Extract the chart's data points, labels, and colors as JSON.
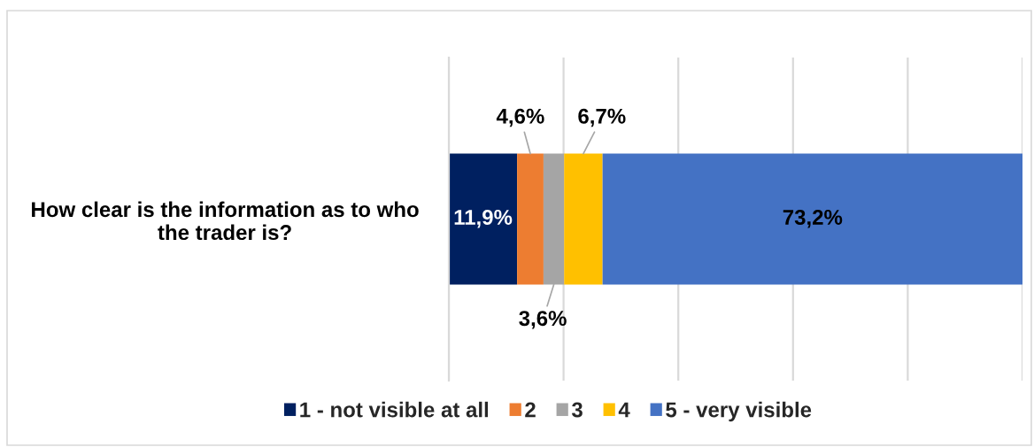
{
  "chart_data": {
    "type": "bar",
    "orientation": "horizontal",
    "stacked": true,
    "categories": [
      "How clear is the information as to who the trader is?"
    ],
    "series": [
      {
        "name": "1 - not visible at all",
        "color": "#002060",
        "values": [
          11.9
        ],
        "value_labels": [
          "11,9%"
        ]
      },
      {
        "name": "2",
        "color": "#ed7d31",
        "values": [
          4.6
        ],
        "value_labels": [
          "4,6%"
        ]
      },
      {
        "name": "3",
        "color": "#a5a5a5",
        "values": [
          3.6
        ],
        "value_labels": [
          "3,6%"
        ]
      },
      {
        "name": "4",
        "color": "#ffc000",
        "values": [
          6.7
        ],
        "value_labels": [
          "6,7%"
        ]
      },
      {
        "name": "5 - very visible",
        "color": "#4472c4",
        "values": [
          73.2
        ],
        "value_labels": [
          "73,2%"
        ]
      }
    ],
    "xlim": [
      0,
      100
    ],
    "xticks": [
      {
        "value": 0,
        "label": null
      },
      {
        "value": 20,
        "label": null
      },
      {
        "value": 40,
        "label": null
      },
      {
        "value": 60,
        "label": null
      },
      {
        "value": 80,
        "label": null
      },
      {
        "value": 100,
        "label": null
      }
    ],
    "grid": "x",
    "legend": "bottom",
    "tick_labels": "y"
  }
}
